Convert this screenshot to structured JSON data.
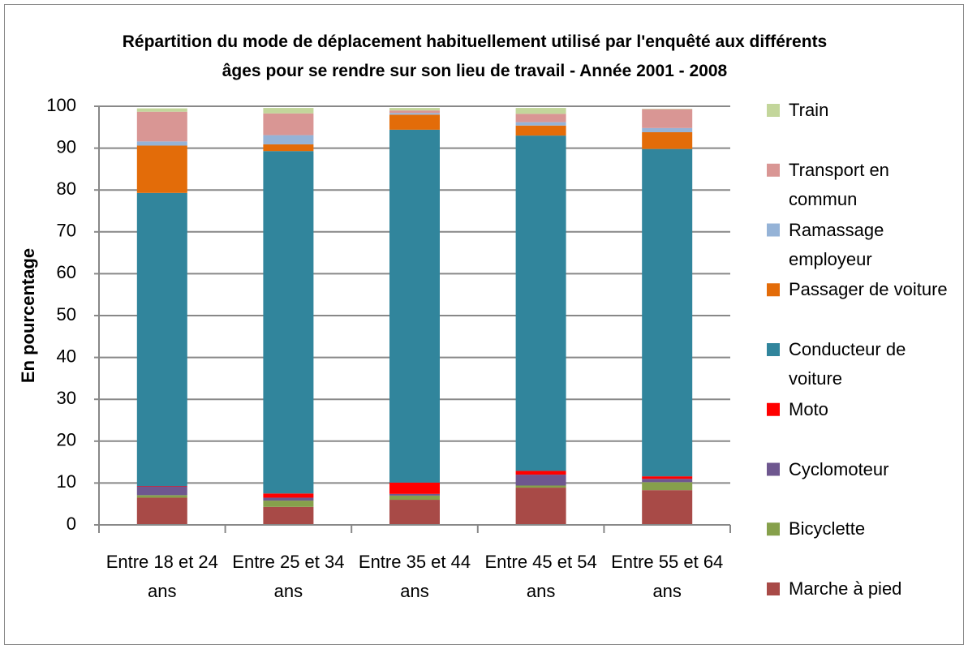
{
  "chart_data": {
    "type": "stacked_bar",
    "title": "Répartition du mode de déplacement habituellement utilisé par l'enquêté aux différents âges pour se rendre sur son lieu de travail - Année 2001 - 2008",
    "y_label": "En pourcentage",
    "categories": [
      "Entre 18 et 24 ans",
      "Entre 25 et 34 ans",
      "Entre 35 et 44 ans",
      "Entre 45 et 54 ans",
      "Entre 55 et 64 ans"
    ],
    "series": [
      {
        "name": "Marche à pied",
        "color": "#a84a47",
        "values": [
          6.5,
          4.3,
          6.0,
          8.9,
          8.3
        ]
      },
      {
        "name": "Bicyclette",
        "color": "#86a04b",
        "values": [
          0.6,
          1.5,
          1.0,
          0.5,
          1.9
        ]
      },
      {
        "name": "Cyclomoteur",
        "color": "#6e578f",
        "values": [
          2.1,
          0.7,
          0.4,
          2.6,
          0.8
        ]
      },
      {
        "name": "Moto",
        "color": "#ff0000",
        "values": [
          0.1,
          1.0,
          2.7,
          0.9,
          0.6
        ]
      },
      {
        "name": "Conducteur de voiture",
        "color": "#31859c",
        "values": [
          70.0,
          81.8,
          84.3,
          80.1,
          78.2
        ]
      },
      {
        "name": "Passager de voiture",
        "color": "#e36c09",
        "values": [
          11.3,
          1.6,
          3.6,
          2.4,
          4.0
        ]
      },
      {
        "name": "Ramassage employeur",
        "color": "#95b3d7",
        "values": [
          1.0,
          2.2,
          0.4,
          0.8,
          1.0
        ]
      },
      {
        "name": "Transport en commun",
        "color": "#d99694",
        "values": [
          7.1,
          5.2,
          0.6,
          2.0,
          4.5
        ]
      },
      {
        "name": "Train",
        "color": "#c3d69b",
        "values": [
          0.8,
          1.3,
          0.6,
          1.4,
          0.1
        ]
      }
    ],
    "ylim": [
      0,
      100
    ],
    "yticks": [
      0,
      10,
      20,
      30,
      40,
      50,
      60,
      70,
      80,
      90,
      100
    ],
    "grid": true,
    "legend": "right"
  }
}
